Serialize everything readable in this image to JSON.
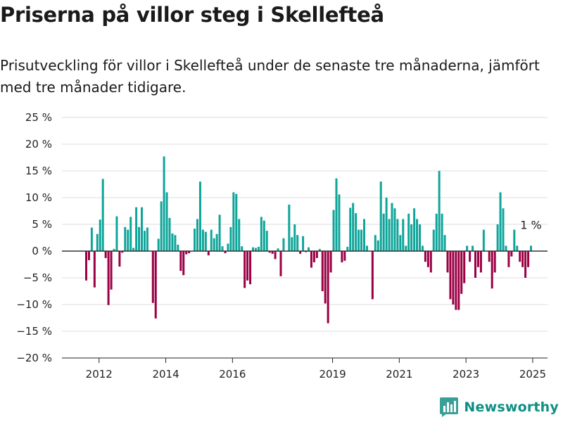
{
  "header": {
    "title": "Priserna på villor steg i Skellefteå",
    "subtitle": "Prisutveckling för villor i Skellefteå under de senaste tre månaderna, jämfört med tre månader tidigare."
  },
  "brand": {
    "name": "Newsworthy",
    "icon": "bar-chart-logo-icon",
    "color": "#3a9f96"
  },
  "colors": {
    "positive": "#0ea59a",
    "negative": "#9b0045",
    "zero_line": "#333333",
    "grid": "#dddddd"
  },
  "chart_data": {
    "type": "bar",
    "start": "2011-08",
    "frequency": "monthly",
    "x_ticks": [
      "2012",
      "2014",
      "2016",
      "2019",
      "2021",
      "2023",
      "2025"
    ],
    "y_ticks": [
      "25 %",
      "20 %",
      "15 %",
      "10 %",
      "5 %",
      "0 %",
      "−5 %",
      "−10 %",
      "−15 %",
      "−20 %"
    ],
    "ylim": [
      -20,
      25
    ],
    "grid": true,
    "annotation": "1 %",
    "ylabel": "",
    "xlabel": "",
    "values": [
      -5.5,
      -1.7,
      4.4,
      -6.8,
      3.2,
      5.9,
      13.5,
      -1.3,
      -10.1,
      -7.2,
      0.4,
      6.5,
      -2.9,
      -0.3,
      4.5,
      4.0,
      6.4,
      0.6,
      8.2,
      4.5,
      8.2,
      3.8,
      4.4,
      0.0,
      -9.7,
      -12.6,
      2.3,
      9.3,
      17.7,
      11.0,
      6.2,
      3.3,
      3.0,
      1.2,
      -3.7,
      -4.5,
      -0.6,
      -0.4,
      0.0,
      4.2,
      6.0,
      13.0,
      4.0,
      3.6,
      -0.8,
      4.0,
      2.4,
      3.2,
      6.8,
      0.9,
      -0.4,
      1.4,
      4.5,
      11.0,
      10.7,
      6.0,
      0.9,
      -6.9,
      -5.5,
      -6.2,
      0.7,
      0.6,
      0.8,
      6.4,
      5.7,
      3.8,
      -0.3,
      -0.5,
      -1.5,
      0.5,
      -4.7,
      2.4,
      0.0,
      8.7,
      2.6,
      5.0,
      3.0,
      -0.5,
      2.8,
      -0.2,
      0.7,
      -3.1,
      -2.1,
      -1.3,
      0.4,
      -7.5,
      -9.8,
      -13.5,
      -4.0,
      7.7,
      13.6,
      10.6,
      -2.1,
      -1.8,
      0.8,
      8.1,
      9.0,
      7.1,
      4.0,
      4.0,
      6.0,
      1.0,
      0.0,
      -9.0,
      3.0,
      2.0,
      13.0,
      7.0,
      10.0,
      6.0,
      9.0,
      8.0,
      6.0,
      3.0,
      6.0,
      1.0,
      7.0,
      5.0,
      8.0,
      6.0,
      5.0,
      1.0,
      -2.0,
      -3.0,
      -4.0,
      4.0,
      7.0,
      15.0,
      7.0,
      3.0,
      -4.0,
      -9.0,
      -10.0,
      -11.0,
      -11.0,
      -8.0,
      -6.0,
      1.0,
      -2.0,
      1.0,
      -5.0,
      -3.0,
      -4.0,
      4.0,
      0.0,
      -2.0,
      -7.0,
      -4.0,
      5.0,
      11.0,
      8.0,
      1.0,
      -3.0,
      -1.0,
      4.0,
      1.0,
      -2.0,
      -3.0,
      -5.0,
      -3.0,
      1.0
    ]
  }
}
